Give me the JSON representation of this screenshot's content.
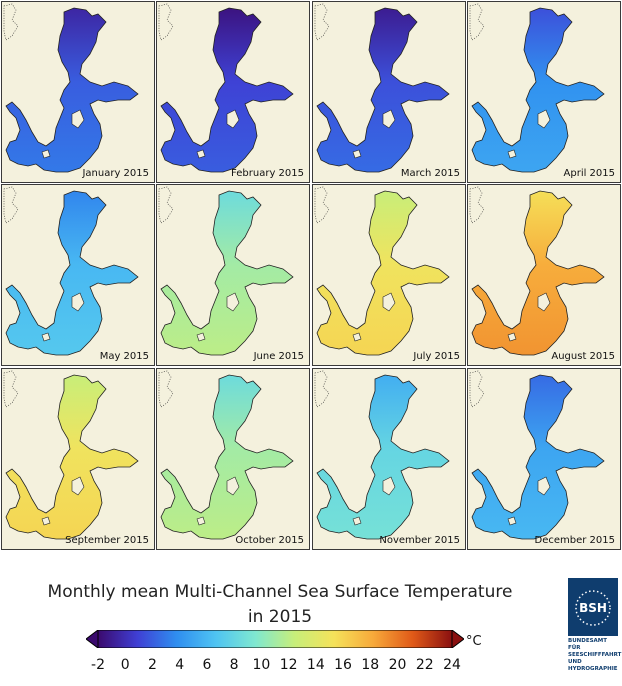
{
  "panels": [
    {
      "label": "January 2015",
      "temp": 2
    },
    {
      "label": "February 2015",
      "temp": 1
    },
    {
      "label": "March 2015",
      "temp": 1.5
    },
    {
      "label": "April 2015",
      "temp": 4
    },
    {
      "label": "May 2015",
      "temp": 6
    },
    {
      "label": "June 2015",
      "temp": 11
    },
    {
      "label": "July 2015",
      "temp": 15
    },
    {
      "label": "August 2015",
      "temp": 18
    },
    {
      "label": "September 2015",
      "temp": 15
    },
    {
      "label": "October 2015",
      "temp": 11
    },
    {
      "label": "November 2015",
      "temp": 8
    },
    {
      "label": "December 2015",
      "temp": 5
    }
  ],
  "title": {
    "line1": "Monthly mean Multi-Channel Sea Surface Temperature",
    "line2": "in 2015"
  },
  "colorbar": {
    "ticks": [
      "-2",
      "0",
      "2",
      "4",
      "6",
      "8",
      "10",
      "12",
      "14",
      "16",
      "18",
      "20",
      "22",
      "24"
    ],
    "unit": "°C",
    "min": -2,
    "max": 24,
    "colors": [
      "#3b0a6e",
      "#3f3fd4",
      "#2f8ef0",
      "#4fc4f2",
      "#7fe8d0",
      "#c7ee7a",
      "#f5e25a",
      "#f7a93a",
      "#e05a18",
      "#8a1010"
    ]
  },
  "logo": {
    "abbrev": "BSH",
    "lines": [
      "BUNDESAMT FÜR",
      "SEESCHIFFFAHRT",
      "UND",
      "HYDROGRAPHIE"
    ]
  }
}
